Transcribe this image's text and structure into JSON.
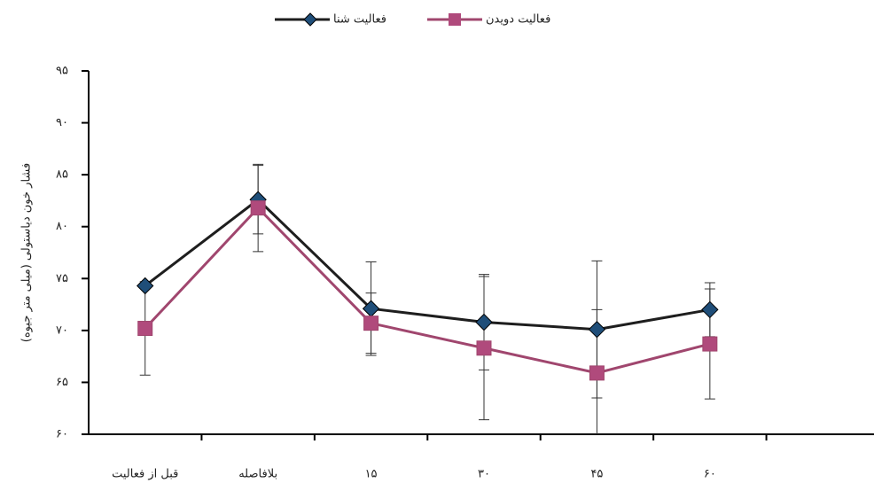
{
  "chart_data": {
    "type": "line",
    "y_label": "فشار خون دیاستولی (میلی متر جیوه)",
    "categories": [
      "قبل از فعالیت",
      "بلافاصله",
      "۱۵",
      "۳۰",
      "۴۵",
      "۶۰"
    ],
    "ylim": [
      60,
      95
    ],
    "yticks": [
      {
        "value": 60,
        "label": "۶۰"
      },
      {
        "value": 65,
        "label": "۶۵"
      },
      {
        "value": 70,
        "label": "۷۰"
      },
      {
        "value": 75,
        "label": "۷۵"
      },
      {
        "value": 80,
        "label": "۸۰"
      },
      {
        "value": 85,
        "label": "۸۵"
      },
      {
        "value": 90,
        "label": "۹۰"
      },
      {
        "value": 95,
        "label": "۹۵"
      }
    ],
    "series": [
      {
        "name": "فعالیت شنا",
        "color": "#1e1e1e",
        "marker_color": "#1f4e79",
        "marker": "diamond",
        "values": [
          74.3,
          82.6,
          72.1,
          70.8,
          70.1,
          72.0
        ],
        "errors": [
          null,
          3.3,
          4.5,
          4.6,
          6.6,
          2.6
        ]
      },
      {
        "name": "فعالیت دویدن",
        "color": "#a0466e",
        "marker_color": "#b04a7c",
        "marker": "square",
        "values": [
          70.2,
          81.8,
          70.7,
          68.3,
          65.9,
          68.7
        ],
        "errors": [
          4.5,
          4.2,
          2.9,
          6.9,
          6.1,
          5.3
        ]
      }
    ],
    "legend": "top"
  }
}
